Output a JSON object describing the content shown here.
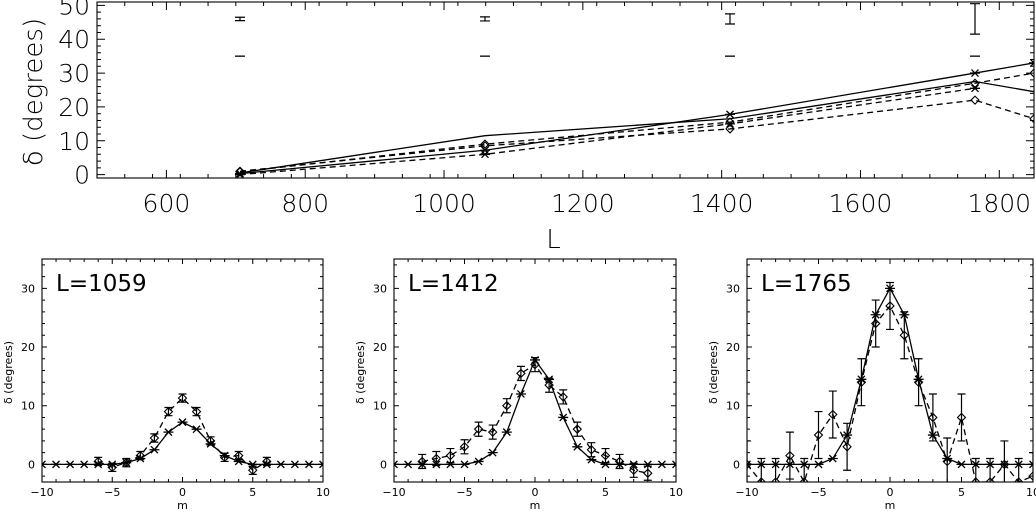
{
  "chart_data": [
    {
      "type": "line",
      "xlabel": "L",
      "ylabel": "δ (degrees)",
      "xlim": [
        500,
        1850
      ],
      "ylim": [
        -1,
        51
      ],
      "x_ticks": [
        600,
        800,
        1000,
        1200,
        1400,
        1600,
        1800
      ],
      "y_ticks": [
        0,
        10,
        20,
        30,
        40,
        50
      ],
      "series": [
        {
          "style": "solid",
          "marker": "none",
          "x": [
            706,
            1059,
            1412,
            1765,
            1850
          ],
          "y": [
            0.5,
            11.5,
            16.5,
            27.5,
            24.5
          ]
        },
        {
          "style": "solid",
          "marker": "asterisk",
          "x": [
            706,
            1059,
            1412,
            1765,
            1850
          ],
          "y": [
            0.3,
            7.2,
            17.8,
            30.0,
            33.0
          ]
        },
        {
          "style": "dashed",
          "marker": "diamond",
          "x": [
            706,
            1059,
            1412,
            1765,
            1850
          ],
          "y": [
            0.8,
            9.0,
            15.5,
            27.0,
            30.0
          ]
        },
        {
          "style": "dashed",
          "marker": "diamond",
          "x": [
            706,
            1059,
            1412,
            1765,
            1850
          ],
          "y": [
            1.0,
            8.5,
            13.5,
            22.0,
            16.5
          ]
        },
        {
          "style": "dashed",
          "marker": "asterisk",
          "x": [
            706,
            1059,
            1412,
            1765
          ],
          "y": [
            0.0,
            6.0,
            15.0,
            25.5
          ]
        }
      ],
      "error_bars": [
        {
          "x": 706,
          "y": 46,
          "err": 0.5
        },
        {
          "x": 1059,
          "y": 46,
          "err": 0.6
        },
        {
          "x": 1412,
          "y": 46,
          "err": 1.5
        },
        {
          "x": 1765,
          "y": 46,
          "err": 4.5
        }
      ],
      "reference_marks": [
        {
          "x": 706,
          "y": 35
        },
        {
          "x": 1059,
          "y": 35
        },
        {
          "x": 1412,
          "y": 35
        },
        {
          "x": 1765,
          "y": 35
        }
      ]
    },
    {
      "type": "line",
      "panel_label": "L=1059",
      "xlabel": "m",
      "ylabel": "δ (degrees)",
      "xlim": [
        -10,
        10
      ],
      "ylim": [
        -3,
        35
      ],
      "x_ticks": [
        -10,
        -5,
        0,
        5,
        10
      ],
      "y_ticks": [
        0,
        10,
        20,
        30
      ],
      "series": [
        {
          "style": "solid",
          "marker": "asterisk",
          "x": [
            -10,
            -9,
            -8,
            -7,
            -6,
            -5,
            -4,
            -3,
            -2,
            -1,
            0,
            1,
            2,
            3,
            4,
            5,
            6,
            7,
            8,
            9,
            10
          ],
          "y": [
            0,
            0,
            0,
            0,
            0,
            0,
            0.3,
            1.0,
            2.5,
            5.5,
            7.2,
            6.0,
            3.5,
            1.5,
            0.5,
            0,
            0,
            0,
            0,
            0,
            0
          ]
        },
        {
          "style": "dashed",
          "marker": "diamond",
          "x": [
            -6,
            -5,
            -4,
            -3,
            -2,
            -1,
            0,
            1,
            2,
            3,
            4,
            5,
            6
          ],
          "y": [
            0.5,
            -0.5,
            0.3,
            1.5,
            4.5,
            9.0,
            11.3,
            9.0,
            4.0,
            1.2,
            1.5,
            -1.0,
            0.5
          ],
          "yerr": [
            0.7,
            0.7,
            0.7,
            0.7,
            0.7,
            0.7,
            0.7,
            0.7,
            0.7,
            0.7,
            0.7,
            0.7,
            0.7
          ]
        }
      ]
    },
    {
      "type": "line",
      "panel_label": "L=1412",
      "xlabel": "m",
      "ylabel": "δ (degrees)",
      "xlim": [
        -10,
        10
      ],
      "ylim": [
        -3,
        35
      ],
      "x_ticks": [
        -10,
        -5,
        0,
        5,
        10
      ],
      "y_ticks": [
        0,
        10,
        20,
        30
      ],
      "series": [
        {
          "style": "solid",
          "marker": "asterisk",
          "x": [
            -10,
            -9,
            -8,
            -7,
            -6,
            -5,
            -4,
            -3,
            -2,
            -1,
            0,
            1,
            2,
            3,
            4,
            5,
            6,
            7,
            8,
            9,
            10
          ],
          "y": [
            0,
            0,
            0,
            0,
            0,
            0,
            0.5,
            2.0,
            5.5,
            12.0,
            17.8,
            14.5,
            8.0,
            3.0,
            0.8,
            0,
            0,
            0,
            0,
            0,
            0
          ]
        },
        {
          "style": "dashed",
          "marker": "diamond",
          "x": [
            -8,
            -7,
            -6,
            -5,
            -4,
            -3,
            -2,
            -1,
            0,
            1,
            2,
            3,
            4,
            5,
            6,
            7,
            8
          ],
          "y": [
            0.5,
            1.0,
            1.5,
            3.0,
            6.0,
            5.5,
            10.0,
            15.5,
            17.0,
            13.5,
            11.5,
            6.0,
            2.5,
            1.5,
            0.5,
            -1.0,
            -1.5
          ],
          "yerr": [
            1.2,
            1.2,
            1.2,
            1.2,
            1.2,
            1.2,
            1.2,
            1.2,
            1.2,
            1.2,
            1.2,
            1.2,
            1.2,
            1.2,
            1.2,
            1.2,
            1.2
          ]
        }
      ]
    },
    {
      "type": "line",
      "panel_label": "L=1765",
      "xlabel": "m",
      "ylabel": "δ (degrees)",
      "xlim": [
        -10,
        10
      ],
      "ylim": [
        -3,
        35
      ],
      "x_ticks": [
        -10,
        -5,
        0,
        5,
        10
      ],
      "y_ticks": [
        0,
        10,
        20,
        30
      ],
      "series": [
        {
          "style": "solid",
          "marker": "asterisk",
          "x": [
            -10,
            -9,
            -8,
            -7,
            -6,
            -5,
            -4,
            -3,
            -2,
            -1,
            0,
            1,
            2,
            3,
            4,
            5,
            6,
            7,
            8,
            9,
            10
          ],
          "y": [
            0,
            0,
            0,
            0,
            0,
            0,
            1.0,
            5.0,
            14.5,
            25.5,
            30.0,
            25.5,
            14.5,
            5.0,
            1.0,
            0,
            0,
            0,
            0,
            0,
            0
          ]
        },
        {
          "style": "dashed",
          "marker": "diamond",
          "x": [
            -10,
            -9,
            -8,
            -7,
            -6,
            -5,
            -4,
            -3,
            -2,
            -1,
            0,
            1,
            2,
            3,
            4,
            5,
            6,
            7,
            8,
            9,
            10
          ],
          "y": [
            0,
            -3,
            -3,
            1.5,
            -3,
            5.0,
            8.5,
            3.0,
            14.0,
            24.0,
            27.0,
            22.0,
            14.0,
            8.0,
            0.5,
            8.0,
            -3.0,
            -3,
            0,
            -3,
            -2.0
          ],
          "yerr": [
            4,
            4,
            4,
            4,
            4,
            4,
            4,
            4,
            4,
            4,
            4,
            4,
            4,
            4,
            4,
            4,
            4,
            4,
            4,
            4,
            4
          ]
        }
      ]
    }
  ]
}
